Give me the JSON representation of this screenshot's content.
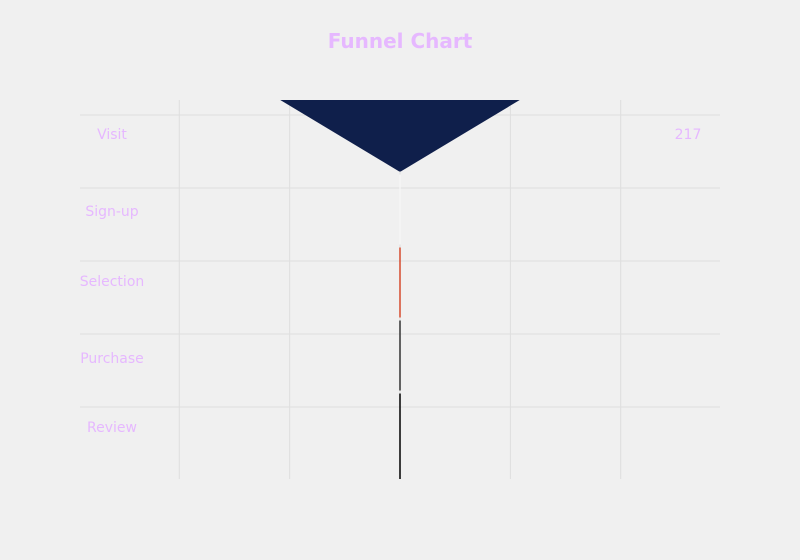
{
  "chart_data": {
    "type": "funnel",
    "title": "Funnel Chart",
    "categories": [
      "Visit",
      "Sign-up",
      "Selection",
      "Purchase",
      "Review"
    ],
    "values": [
      217,
      0.1,
      1,
      1,
      1
    ],
    "value_labels": [
      "217",
      "",
      "",
      "",
      ""
    ],
    "colors": [
      "#0f1f4b",
      "#f5f5f5",
      "#d64a2e",
      "#333333",
      "#000000"
    ],
    "xlim": [
      -290,
      290
    ],
    "grid": true,
    "legend": "none"
  },
  "style": {
    "label_color": "#e6b8ff",
    "grid_color": "#dedede",
    "background": "#f0f0f0"
  }
}
